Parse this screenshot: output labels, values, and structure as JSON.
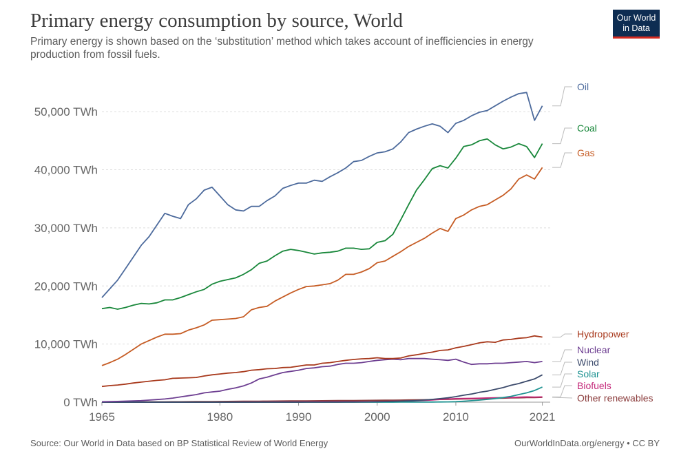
{
  "header": {
    "title": "Primary energy consumption by source, World",
    "subtitle": "Primary energy is shown based on the ‘substitution’ method which takes account of inefficiencies in energy production from fossil fuels.",
    "logo_line1": "Our World",
    "logo_line2": "in Data"
  },
  "footer": {
    "source": "Source: Our World in Data based on BP Statistical Review of World Energy",
    "link": "OurWorldInData.org/energy • CC BY"
  },
  "colors": {
    "oil": "#4c6a9c",
    "coal": "#18873a",
    "gas": "#c65c24",
    "hydropower": "#a8391c",
    "nuclear": "#6d3e91",
    "wind": "#3b4a6b",
    "solar": "#1f9392",
    "biofuels": "#c4297a",
    "other_renewables": "#8a3b3b"
  },
  "chart_data": {
    "type": "line",
    "xlim": [
      1965,
      2022
    ],
    "ylim": [
      0,
      55000
    ],
    "x_ticks": [
      "1965",
      "1980",
      "1990",
      "2000",
      "2010",
      "2021"
    ],
    "x_tick_values": [
      1965,
      1980,
      1990,
      2000,
      2010,
      2021
    ],
    "y_ticks": [
      "0 TWh",
      "10,000 TWh",
      "20,000 TWh",
      "30,000 TWh",
      "40,000 TWh",
      "50,000 TWh"
    ],
    "y_tick_values": [
      0,
      10000,
      20000,
      30000,
      40000,
      50000
    ],
    "grid": true,
    "legend": "right",
    "x": [
      1965,
      1966,
      1967,
      1968,
      1969,
      1970,
      1971,
      1972,
      1973,
      1974,
      1975,
      1976,
      1977,
      1978,
      1979,
      1980,
      1981,
      1982,
      1983,
      1984,
      1985,
      1986,
      1987,
      1988,
      1989,
      1990,
      1991,
      1992,
      1993,
      1994,
      1995,
      1996,
      1997,
      1998,
      1999,
      2000,
      2001,
      2002,
      2003,
      2004,
      2005,
      2006,
      2007,
      2008,
      2009,
      2010,
      2011,
      2012,
      2013,
      2014,
      2015,
      2016,
      2017,
      2018,
      2019,
      2020,
      2021
    ],
    "series": [
      {
        "name": "Oil",
        "color_key": "oil",
        "values": [
          18000,
          19500,
          21000,
          23000,
          25000,
          27000,
          28500,
          30500,
          32500,
          32000,
          31600,
          34000,
          35000,
          36500,
          37000,
          35500,
          34000,
          33100,
          32900,
          33700,
          33700,
          34700,
          35500,
          36800,
          37300,
          37700,
          37700,
          38200,
          38000,
          38800,
          39500,
          40300,
          41400,
          41600,
          42300,
          42900,
          43100,
          43600,
          44800,
          46400,
          47000,
          47500,
          47900,
          47500,
          46400,
          48000,
          48500,
          49300,
          49900,
          50200,
          51000,
          51800,
          52500,
          53100,
          53300,
          48500,
          51000
        ]
      },
      {
        "name": "Coal",
        "color_key": "coal",
        "values": [
          16100,
          16300,
          16000,
          16300,
          16700,
          17000,
          16900,
          17100,
          17600,
          17600,
          18000,
          18500,
          19000,
          19400,
          20300,
          20800,
          21100,
          21400,
          22000,
          22800,
          23900,
          24300,
          25200,
          26000,
          26300,
          26100,
          25800,
          25500,
          25700,
          25800,
          26000,
          26500,
          26500,
          26300,
          26400,
          27500,
          27800,
          28900,
          31400,
          34000,
          36500,
          38300,
          40200,
          40700,
          40300,
          42000,
          44000,
          44300,
          45000,
          45300,
          44300,
          43600,
          43900,
          44500,
          44000,
          42100,
          44500
        ]
      },
      {
        "name": "Gas",
        "color_key": "gas",
        "values": [
          6300,
          6800,
          7400,
          8200,
          9100,
          10000,
          10600,
          11200,
          11700,
          11700,
          11800,
          12400,
          12800,
          13300,
          14100,
          14200,
          14300,
          14400,
          14700,
          15900,
          16300,
          16500,
          17400,
          18100,
          18800,
          19400,
          19900,
          20000,
          20200,
          20400,
          21000,
          22000,
          22000,
          22400,
          23000,
          24000,
          24300,
          25100,
          25900,
          26800,
          27500,
          28200,
          29100,
          29900,
          29400,
          31600,
          32200,
          33100,
          33700,
          34000,
          34800,
          35600,
          36700,
          38400,
          39100,
          38400,
          40400
        ]
      },
      {
        "name": "Hydropower",
        "color_key": "hydropower",
        "values": [
          2700,
          2850,
          2950,
          3100,
          3300,
          3450,
          3600,
          3750,
          3850,
          4100,
          4150,
          4200,
          4250,
          4500,
          4700,
          4850,
          5000,
          5100,
          5250,
          5500,
          5600,
          5750,
          5800,
          5950,
          6000,
          6200,
          6400,
          6400,
          6700,
          6800,
          7000,
          7200,
          7350,
          7450,
          7500,
          7650,
          7500,
          7500,
          7600,
          7950,
          8150,
          8400,
          8600,
          8900,
          9000,
          9350,
          9600,
          9900,
          10200,
          10400,
          10300,
          10700,
          10800,
          11000,
          11100,
          11400,
          11200
        ]
      },
      {
        "name": "Nuclear",
        "color_key": "nuclear",
        "values": [
          70,
          100,
          130,
          180,
          220,
          260,
          350,
          450,
          550,
          700,
          900,
          1100,
          1300,
          1600,
          1750,
          1900,
          2200,
          2450,
          2800,
          3300,
          4000,
          4300,
          4700,
          5100,
          5300,
          5500,
          5800,
          5900,
          6100,
          6200,
          6500,
          6700,
          6700,
          6800,
          7000,
          7200,
          7300,
          7400,
          7300,
          7500,
          7500,
          7500,
          7400,
          7300,
          7200,
          7400,
          6900,
          6500,
          6600,
          6600,
          6700,
          6700,
          6800,
          6900,
          7000,
          6800,
          7000
        ]
      },
      {
        "name": "Wind",
        "color_key": "wind",
        "values": [
          0,
          0,
          0,
          0,
          0,
          0,
          0,
          0,
          0,
          0,
          0,
          0,
          0,
          0,
          0,
          0,
          0,
          0,
          0,
          0,
          0,
          0,
          0,
          0,
          0,
          5,
          8,
          12,
          15,
          20,
          25,
          30,
          40,
          50,
          60,
          85,
          110,
          140,
          180,
          230,
          290,
          370,
          470,
          600,
          750,
          950,
          1200,
          1400,
          1700,
          1900,
          2200,
          2500,
          2900,
          3200,
          3600,
          4000,
          4700
        ]
      },
      {
        "name": "Solar",
        "color_key": "solar",
        "values": [
          0,
          0,
          0,
          0,
          0,
          0,
          0,
          0,
          0,
          0,
          0,
          0,
          0,
          0,
          0,
          0,
          0,
          0,
          0,
          0,
          0,
          0,
          0,
          0,
          0,
          0,
          0,
          0,
          0,
          0,
          0,
          0,
          0,
          0,
          0,
          3,
          4,
          5,
          7,
          9,
          12,
          16,
          20,
          35,
          50,
          80,
          150,
          250,
          350,
          480,
          620,
          800,
          1000,
          1300,
          1600,
          2000,
          2600
        ]
      },
      {
        "name": "Biofuels",
        "color_key": "biofuels",
        "values": [
          0,
          0,
          0,
          0,
          0,
          0,
          0,
          0,
          0,
          0,
          0,
          0,
          0,
          0,
          0,
          10,
          15,
          25,
          35,
          40,
          45,
          50,
          55,
          60,
          60,
          65,
          70,
          75,
          80,
          85,
          90,
          95,
          100,
          100,
          110,
          120,
          130,
          150,
          180,
          210,
          250,
          300,
          380,
          480,
          540,
          600,
          640,
          650,
          680,
          720,
          760,
          780,
          800,
          850,
          900,
          880,
          900
        ]
      },
      {
        "name": "Other renewables",
        "color_key": "other_renewables",
        "values": [
          30,
          33,
          36,
          40,
          45,
          50,
          55,
          60,
          65,
          70,
          75,
          80,
          90,
          100,
          110,
          120,
          130,
          140,
          150,
          160,
          170,
          180,
          190,
          200,
          210,
          220,
          230,
          240,
          250,
          260,
          270,
          280,
          290,
          300,
          310,
          320,
          330,
          340,
          360,
          380,
          400,
          420,
          440,
          460,
          480,
          520,
          540,
          570,
          600,
          630,
          660,
          690,
          720,
          750,
          780,
          800,
          830
        ]
      }
    ],
    "end_labels": [
      "Oil",
      "Coal",
      "Gas",
      "Hydropower",
      "Nuclear",
      "Wind",
      "Solar",
      "Biofuels",
      "Other renewables"
    ]
  }
}
